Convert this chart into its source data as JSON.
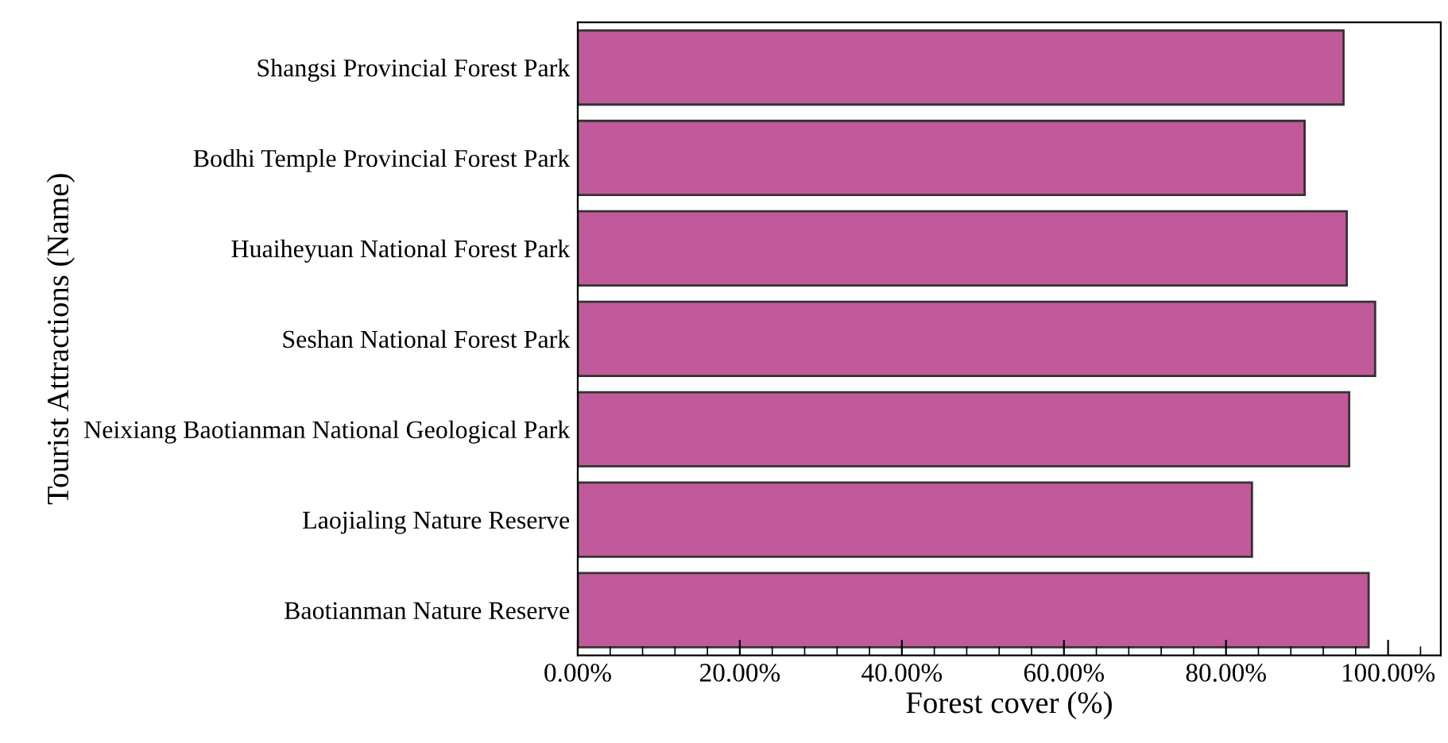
{
  "chart_data": {
    "type": "bar",
    "orientation": "horizontal",
    "xlabel": "Forest cover (%)",
    "ylabel": "Tourist Attractions (Name)",
    "categories": [
      "Shangsi Provincial Forest Park",
      "Bodhi Temple Provincial Forest Park",
      "Huaiheyuan National Forest Park",
      "Seshan National Forest Park",
      "Neixiang Baotianman National Geological Park",
      "Laojialing Nature Reserve",
      "Baotianman Nature Reserve"
    ],
    "series": [
      {
        "color": "#c05a9a",
        "values": [
          94.5,
          89.7,
          94.9,
          98.4,
          95.2,
          83.2,
          97.6
        ]
      }
    ],
    "xlim": [
      0,
      106.5
    ],
    "xticks": [
      {
        "value": 0,
        "label": "0.00%"
      },
      {
        "value": 20,
        "label": "20.00%"
      },
      {
        "value": 40,
        "label": "40.00%"
      },
      {
        "value": 60,
        "label": "60.00%"
      },
      {
        "value": 80,
        "label": "80.00%"
      },
      {
        "value": 100,
        "label": "100.00%"
      }
    ],
    "grid": false,
    "legend": false
  }
}
